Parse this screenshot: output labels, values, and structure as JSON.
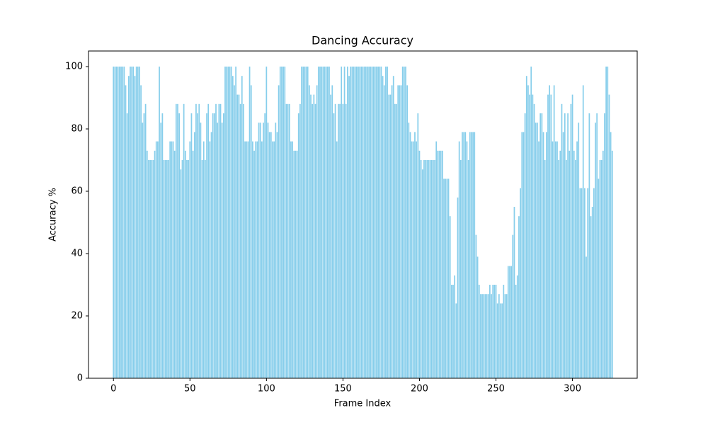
{
  "chart_data": {
    "type": "bar",
    "title": "Dancing Accuracy",
    "x_label": "Frame Index",
    "y_label": "Accuracy %",
    "color": "#87ceeb",
    "x": [
      0,
      1,
      2,
      3,
      4,
      5,
      6,
      7,
      8,
      9,
      10,
      11,
      12,
      13,
      14,
      15,
      16,
      17,
      18,
      19,
      20,
      21,
      22,
      23,
      24,
      25,
      26,
      27,
      28,
      29,
      30,
      31,
      32,
      33,
      34,
      35,
      36,
      37,
      38,
      39,
      40,
      41,
      42,
      43,
      44,
      45,
      46,
      47,
      48,
      49,
      50,
      51,
      52,
      53,
      54,
      55,
      56,
      57,
      58,
      59,
      60,
      61,
      62,
      63,
      64,
      65,
      66,
      67,
      68,
      69,
      70,
      71,
      72,
      73,
      74,
      75,
      76,
      77,
      78,
      79,
      80,
      81,
      82,
      83,
      84,
      85,
      86,
      87,
      88,
      89,
      90,
      91,
      92,
      93,
      94,
      95,
      96,
      97,
      98,
      99,
      100,
      101,
      102,
      103,
      104,
      105,
      106,
      107,
      108,
      109,
      110,
      111,
      112,
      113,
      114,
      115,
      116,
      117,
      118,
      119,
      120,
      121,
      122,
      123,
      124,
      125,
      126,
      127,
      128,
      129,
      130,
      131,
      132,
      133,
      134,
      135,
      136,
      137,
      138,
      139,
      140,
      141,
      142,
      143,
      144,
      145,
      146,
      147,
      148,
      149,
      150,
      151,
      152,
      153,
      154,
      155,
      156,
      157,
      158,
      159,
      160,
      161,
      162,
      163,
      164,
      165,
      166,
      167,
      168,
      169,
      170,
      171,
      172,
      173,
      174,
      175,
      176,
      177,
      178,
      179,
      180,
      181,
      182,
      183,
      184,
      185,
      186,
      187,
      188,
      189,
      190,
      191,
      192,
      193,
      194,
      195,
      196,
      197,
      198,
      199,
      200,
      201,
      202,
      203,
      204,
      205,
      206,
      207,
      208,
      209,
      210,
      211,
      212,
      213,
      214,
      215,
      216,
      217,
      218,
      219,
      220,
      221,
      222,
      223,
      224,
      225,
      226,
      227,
      228,
      229,
      230,
      231,
      232,
      233,
      234,
      235,
      236,
      237,
      238,
      239,
      240,
      241,
      242,
      243,
      244,
      245,
      246,
      247,
      248,
      249,
      250,
      251,
      252,
      253,
      254,
      255,
      256,
      257,
      258,
      259,
      260,
      261,
      262,
      263,
      264,
      265,
      266,
      267,
      268,
      269,
      270,
      271,
      272,
      273,
      274,
      275,
      276,
      277,
      278,
      279,
      280,
      281,
      282,
      283,
      284,
      285,
      286,
      287,
      288,
      289,
      290,
      291,
      292,
      293,
      294,
      295,
      296,
      297,
      298,
      299,
      300,
      301,
      302,
      303,
      304,
      305,
      306,
      307,
      308,
      309,
      310,
      311,
      312,
      313,
      314,
      315,
      316,
      317,
      318,
      319,
      320,
      321,
      322,
      323,
      324,
      325,
      326
    ],
    "values": [
      100,
      100,
      100,
      100,
      100,
      100,
      100,
      100,
      94,
      85,
      97,
      100,
      100,
      100,
      97,
      100,
      100,
      100,
      94,
      82,
      85,
      88,
      73,
      70,
      70,
      70,
      70,
      73,
      76,
      76,
      100,
      82,
      85,
      70,
      70,
      70,
      70,
      76,
      76,
      76,
      73,
      88,
      88,
      85,
      67,
      70,
      88,
      73,
      70,
      70,
      76,
      85,
      73,
      79,
      88,
      85,
      88,
      82,
      70,
      76,
      70,
      85,
      88,
      76,
      79,
      85,
      85,
      88,
      82,
      88,
      88,
      82,
      85,
      100,
      100,
      100,
      100,
      100,
      97,
      94,
      100,
      91,
      91,
      88,
      97,
      88,
      76,
      76,
      76,
      100,
      94,
      76,
      73,
      76,
      76,
      82,
      82,
      76,
      82,
      85,
      100,
      82,
      79,
      79,
      76,
      76,
      82,
      79,
      94,
      100,
      100,
      100,
      100,
      88,
      88,
      88,
      76,
      76,
      73,
      73,
      73,
      85,
      88,
      100,
      100,
      100,
      100,
      100,
      94,
      91,
      88,
      91,
      88,
      94,
      100,
      100,
      100,
      100,
      100,
      100,
      100,
      100,
      91,
      94,
      85,
      88,
      76,
      88,
      88,
      100,
      88,
      100,
      88,
      100,
      97,
      100,
      100,
      100,
      100,
      100,
      100,
      100,
      100,
      100,
      100,
      100,
      100,
      100,
      100,
      100,
      100,
      100,
      100,
      100,
      100,
      100,
      97,
      94,
      100,
      100,
      91,
      91,
      94,
      97,
      88,
      88,
      94,
      94,
      94,
      100,
      100,
      100,
      94,
      82,
      79,
      76,
      76,
      79,
      76,
      85,
      73,
      70,
      67,
      70,
      70,
      70,
      70,
      70,
      70,
      70,
      70,
      76,
      73,
      73,
      73,
      73,
      64,
      64,
      64,
      64,
      52,
      30,
      30,
      33,
      24,
      58,
      76,
      70,
      79,
      79,
      79,
      76,
      70,
      79,
      79,
      79,
      79,
      46,
      39,
      30,
      27,
      27,
      27,
      27,
      27,
      27,
      30,
      27,
      30,
      30,
      30,
      24,
      27,
      24,
      24,
      30,
      27,
      27,
      36,
      36,
      36,
      46,
      55,
      30,
      33,
      52,
      61,
      79,
      79,
      85,
      97,
      94,
      91,
      100,
      91,
      88,
      82,
      82,
      76,
      85,
      85,
      79,
      70,
      79,
      91,
      94,
      91,
      76,
      94,
      76,
      76,
      70,
      73,
      88,
      79,
      85,
      70,
      85,
      73,
      88,
      91,
      73,
      70,
      76,
      82,
      61,
      61,
      94,
      61,
      39,
      61,
      85,
      52,
      55,
      61,
      82,
      85,
      64,
      70,
      70,
      73,
      85,
      100,
      100,
      91,
      79,
      73
    ],
    "xlim": [
      -16.3,
      342.3
    ],
    "xticks": [
      0,
      50,
      100,
      150,
      200,
      250,
      300
    ],
    "ylim": [
      0,
      105
    ],
    "yticks": [
      0,
      20,
      40,
      60,
      80,
      100
    ]
  }
}
